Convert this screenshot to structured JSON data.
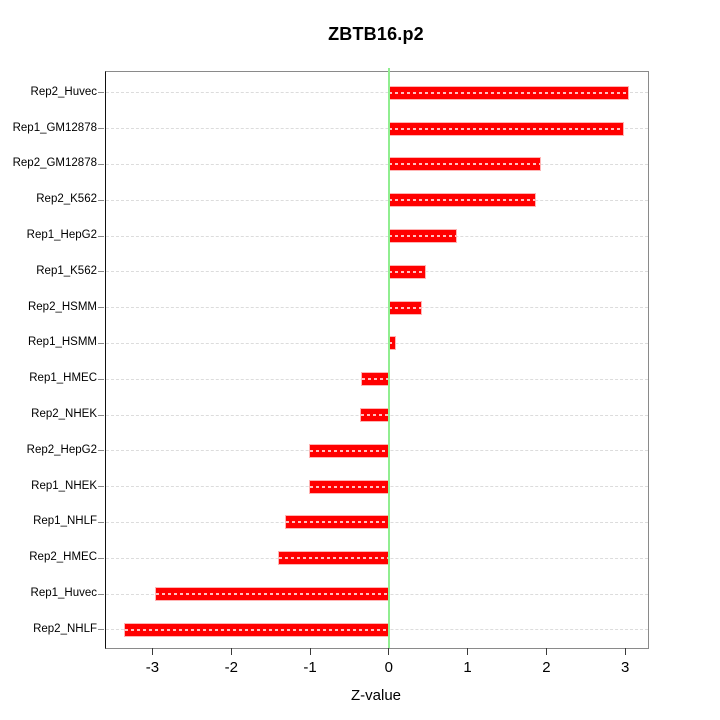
{
  "title": "ZBTB16.p2",
  "chart_data": {
    "type": "bar",
    "orientation": "horizontal",
    "title": "ZBTB16.p2",
    "xlabel": "Z-value",
    "categories": [
      "Rep2_Huvec",
      "Rep1_GM12878",
      "Rep2_GM12878",
      "Rep2_K562",
      "Rep1_HepG2",
      "Rep1_K562",
      "Rep2_HSMM",
      "Rep1_HSMM",
      "Rep1_HMEC",
      "Rep2_NHEK",
      "Rep2_HepG2",
      "Rep1_NHEK",
      "Rep1_NHLF",
      "Rep2_HMEC",
      "Rep1_Huvec",
      "Rep2_NHLF"
    ],
    "values": [
      3.04,
      2.97,
      1.92,
      1.86,
      0.85,
      0.46,
      0.41,
      0.08,
      -0.34,
      -0.35,
      -1.0,
      -1.0,
      -1.3,
      -1.39,
      -2.95,
      -3.35
    ],
    "x_ticks": [
      -3,
      -2,
      -1,
      0,
      1,
      2,
      3
    ],
    "xlim": [
      -3.59,
      3.29
    ],
    "grid": "horizontal dashed line per category",
    "legend": "none",
    "zero_reference_line": 0,
    "colors": {
      "bar": "#ff0000",
      "bar_halo": "#ffb4b4",
      "zero_line": "#90ee90",
      "grid_line": "#dcdcdc",
      "box_border": "#8a8a8a",
      "text": "#000000"
    }
  }
}
